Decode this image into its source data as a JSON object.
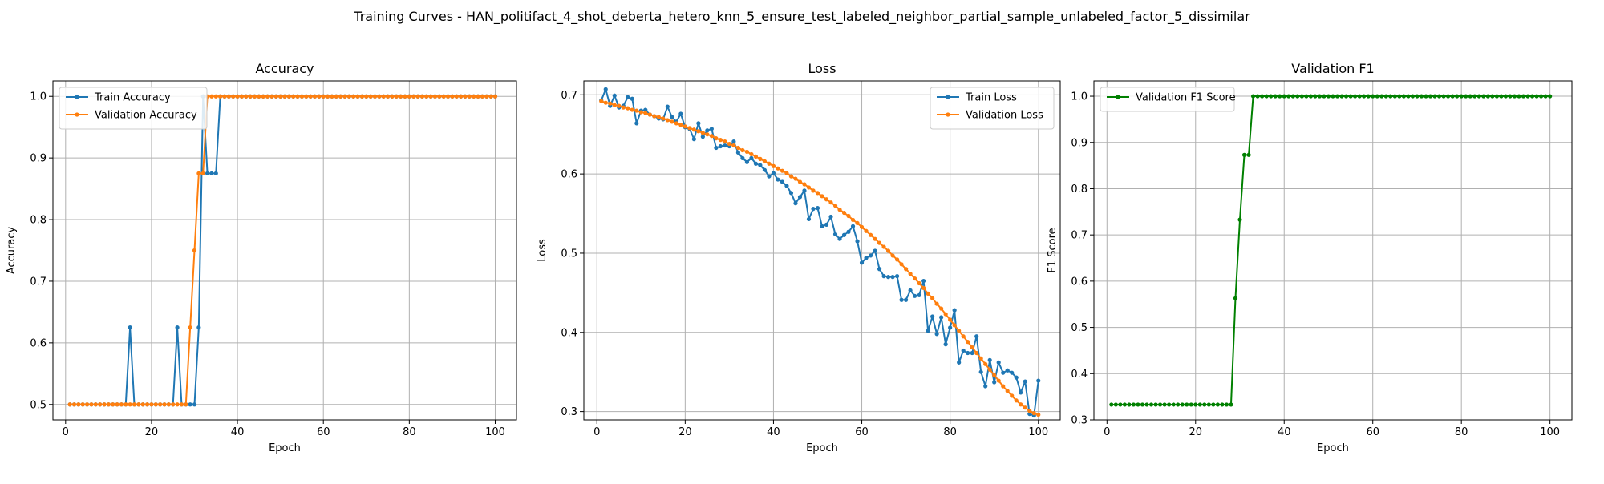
{
  "suptitle": "Training Curves - HAN_politifact_4_shot_deberta_hetero_knn_5_ensure_test_labeled_neighbor_partial_sample_unlabeled_factor_5_dissimilar",
  "colors": {
    "blue": "#1f77b4",
    "orange": "#ff7f0e",
    "green": "#008000",
    "grid": "#b0b0b0"
  },
  "chart_data": [
    {
      "type": "line",
      "title": "Accuracy",
      "xlabel": "Epoch",
      "ylabel": "Accuracy",
      "xlim": [
        -2.95,
        104.95
      ],
      "ylim": [
        0.475,
        1.025
      ],
      "xticks": [
        0,
        20,
        40,
        60,
        80,
        100
      ],
      "yticks": [
        0.5,
        0.6,
        0.7,
        0.8,
        0.9,
        1.0
      ],
      "ytick_labels": [
        "0.5",
        "0.6",
        "0.7",
        "0.8",
        "0.9",
        "1.0"
      ],
      "grid": true,
      "legend": "upper-left",
      "x": [
        1,
        2,
        3,
        4,
        5,
        6,
        7,
        8,
        9,
        10,
        11,
        12,
        13,
        14,
        15,
        16,
        17,
        18,
        19,
        20,
        21,
        22,
        23,
        24,
        25,
        26,
        27,
        28,
        29,
        30,
        31,
        32,
        33,
        34,
        35,
        36,
        37,
        38,
        39,
        40,
        41,
        42,
        43,
        44,
        45,
        46,
        47,
        48,
        49,
        50,
        51,
        52,
        53,
        54,
        55,
        56,
        57,
        58,
        59,
        60,
        61,
        62,
        63,
        64,
        65,
        66,
        67,
        68,
        69,
        70,
        71,
        72,
        73,
        74,
        75,
        76,
        77,
        78,
        79,
        80,
        81,
        82,
        83,
        84,
        85,
        86,
        87,
        88,
        89,
        90,
        91,
        92,
        93,
        94,
        95,
        96,
        97,
        98,
        99,
        100
      ],
      "series": [
        {
          "name": "Train Accuracy",
          "color": "#1f77b4",
          "values": [
            0.5,
            0.5,
            0.5,
            0.5,
            0.5,
            0.5,
            0.5,
            0.5,
            0.5,
            0.5,
            0.5,
            0.5,
            0.5,
            0.5,
            0.625,
            0.5,
            0.5,
            0.5,
            0.5,
            0.5,
            0.5,
            0.5,
            0.5,
            0.5,
            0.5,
            0.625,
            0.5,
            0.5,
            0.5,
            0.5,
            0.625,
            1.0,
            0.875,
            0.875,
            0.875,
            1.0,
            1.0,
            1.0,
            1.0,
            1.0,
            1.0,
            1.0,
            1.0,
            1.0,
            1.0,
            1.0,
            1.0,
            1.0,
            1.0,
            1.0,
            1.0,
            1.0,
            1.0,
            1.0,
            1.0,
            1.0,
            1.0,
            1.0,
            1.0,
            1.0,
            1.0,
            1.0,
            1.0,
            1.0,
            1.0,
            1.0,
            1.0,
            1.0,
            1.0,
            1.0,
            1.0,
            1.0,
            1.0,
            1.0,
            1.0,
            1.0,
            1.0,
            1.0,
            1.0,
            1.0,
            1.0,
            1.0,
            1.0,
            1.0,
            1.0,
            1.0,
            1.0,
            1.0,
            1.0,
            1.0,
            1.0,
            1.0,
            1.0,
            1.0,
            1.0,
            1.0,
            1.0,
            1.0,
            1.0,
            1.0
          ]
        },
        {
          "name": "Validation Accuracy",
          "color": "#ff7f0e",
          "values": [
            0.5,
            0.5,
            0.5,
            0.5,
            0.5,
            0.5,
            0.5,
            0.5,
            0.5,
            0.5,
            0.5,
            0.5,
            0.5,
            0.5,
            0.5,
            0.5,
            0.5,
            0.5,
            0.5,
            0.5,
            0.5,
            0.5,
            0.5,
            0.5,
            0.5,
            0.5,
            0.5,
            0.5,
            0.625,
            0.75,
            0.875,
            0.875,
            1.0,
            1.0,
            1.0,
            1.0,
            1.0,
            1.0,
            1.0,
            1.0,
            1.0,
            1.0,
            1.0,
            1.0,
            1.0,
            1.0,
            1.0,
            1.0,
            1.0,
            1.0,
            1.0,
            1.0,
            1.0,
            1.0,
            1.0,
            1.0,
            1.0,
            1.0,
            1.0,
            1.0,
            1.0,
            1.0,
            1.0,
            1.0,
            1.0,
            1.0,
            1.0,
            1.0,
            1.0,
            1.0,
            1.0,
            1.0,
            1.0,
            1.0,
            1.0,
            1.0,
            1.0,
            1.0,
            1.0,
            1.0,
            1.0,
            1.0,
            1.0,
            1.0,
            1.0,
            1.0,
            1.0,
            1.0,
            1.0,
            1.0,
            1.0,
            1.0,
            1.0,
            1.0,
            1.0,
            1.0,
            1.0,
            1.0,
            1.0,
            1.0
          ]
        }
      ]
    },
    {
      "type": "line",
      "title": "Loss",
      "xlabel": "Epoch",
      "ylabel": "Loss",
      "xlim": [
        -2.95,
        104.95
      ],
      "ylim": [
        0.2895,
        0.7175
      ],
      "xticks": [
        0,
        20,
        40,
        60,
        80,
        100
      ],
      "yticks": [
        0.3,
        0.4,
        0.5,
        0.6,
        0.7
      ],
      "ytick_labels": [
        "0.3",
        "0.4",
        "0.5",
        "0.6",
        "0.7"
      ],
      "grid": true,
      "legend": "upper-right",
      "x": [
        1,
        2,
        3,
        4,
        5,
        6,
        7,
        8,
        9,
        10,
        11,
        12,
        13,
        14,
        15,
        16,
        17,
        18,
        19,
        20,
        21,
        22,
        23,
        24,
        25,
        26,
        27,
        28,
        29,
        30,
        31,
        32,
        33,
        34,
        35,
        36,
        37,
        38,
        39,
        40,
        41,
        42,
        43,
        44,
        45,
        46,
        47,
        48,
        49,
        50,
        51,
        52,
        53,
        54,
        55,
        56,
        57,
        58,
        59,
        60,
        61,
        62,
        63,
        64,
        65,
        66,
        67,
        68,
        69,
        70,
        71,
        72,
        73,
        74,
        75,
        76,
        77,
        78,
        79,
        80,
        81,
        82,
        83,
        84,
        85,
        86,
        87,
        88,
        89,
        90,
        91,
        92,
        93,
        94,
        95,
        96,
        97,
        98,
        99,
        100
      ],
      "series": [
        {
          "name": "Train Loss",
          "color": "#1f77b4",
          "values": [
            0.693,
            0.707,
            0.686,
            0.699,
            0.684,
            0.686,
            0.697,
            0.695,
            0.664,
            0.68,
            0.681,
            0.675,
            0.673,
            0.67,
            0.669,
            0.685,
            0.672,
            0.666,
            0.676,
            0.659,
            0.657,
            0.644,
            0.664,
            0.647,
            0.655,
            0.657,
            0.633,
            0.635,
            0.636,
            0.635,
            0.641,
            0.627,
            0.62,
            0.615,
            0.62,
            0.613,
            0.611,
            0.605,
            0.597,
            0.601,
            0.593,
            0.59,
            0.585,
            0.576,
            0.563,
            0.571,
            0.579,
            0.543,
            0.556,
            0.557,
            0.534,
            0.536,
            0.546,
            0.524,
            0.518,
            0.523,
            0.527,
            0.534,
            0.515,
            0.488,
            0.494,
            0.497,
            0.503,
            0.48,
            0.471,
            0.47,
            0.47,
            0.471,
            0.441,
            0.441,
            0.453,
            0.446,
            0.447,
            0.465,
            0.402,
            0.42,
            0.398,
            0.419,
            0.385,
            0.406,
            0.428,
            0.362,
            0.377,
            0.374,
            0.374,
            0.395,
            0.35,
            0.332,
            0.365,
            0.337,
            0.362,
            0.349,
            0.352,
            0.349,
            0.343,
            0.324,
            0.338,
            0.297,
            0.295,
            0.339
          ]
        },
        {
          "name": "Validation Loss",
          "color": "#ff7f0e",
          "values": [
            0.692,
            0.69,
            0.689,
            0.687,
            0.686,
            0.684,
            0.683,
            0.681,
            0.68,
            0.678,
            0.677,
            0.675,
            0.673,
            0.672,
            0.67,
            0.668,
            0.666,
            0.664,
            0.662,
            0.66,
            0.658,
            0.656,
            0.654,
            0.652,
            0.65,
            0.648,
            0.645,
            0.643,
            0.641,
            0.638,
            0.636,
            0.633,
            0.63,
            0.628,
            0.625,
            0.622,
            0.619,
            0.616,
            0.613,
            0.61,
            0.607,
            0.604,
            0.601,
            0.597,
            0.594,
            0.59,
            0.587,
            0.583,
            0.579,
            0.576,
            0.572,
            0.568,
            0.564,
            0.56,
            0.555,
            0.551,
            0.547,
            0.542,
            0.538,
            0.533,
            0.528,
            0.523,
            0.518,
            0.513,
            0.508,
            0.503,
            0.497,
            0.492,
            0.486,
            0.48,
            0.474,
            0.468,
            0.462,
            0.456,
            0.449,
            0.443,
            0.436,
            0.43,
            0.423,
            0.416,
            0.409,
            0.402,
            0.395,
            0.388,
            0.381,
            0.374,
            0.367,
            0.36,
            0.353,
            0.346,
            0.339,
            0.332,
            0.326,
            0.32,
            0.314,
            0.309,
            0.305,
            0.301,
            0.298,
            0.296
          ]
        }
      ]
    },
    {
      "type": "line",
      "title": "Validation F1",
      "xlabel": "Epoch",
      "ylabel": "F1 Score",
      "xlim": [
        -2.95,
        104.95
      ],
      "ylim": [
        0.3,
        1.033
      ],
      "xticks": [
        0,
        20,
        40,
        60,
        80,
        100
      ],
      "yticks": [
        0.3,
        0.4,
        0.5,
        0.6,
        0.7,
        0.8,
        0.9,
        1.0
      ],
      "ytick_labels": [
        "0.3",
        "0.4",
        "0.5",
        "0.6",
        "0.7",
        "0.8",
        "0.9",
        "1.0"
      ],
      "grid": true,
      "legend": "upper-left",
      "x": [
        1,
        2,
        3,
        4,
        5,
        6,
        7,
        8,
        9,
        10,
        11,
        12,
        13,
        14,
        15,
        16,
        17,
        18,
        19,
        20,
        21,
        22,
        23,
        24,
        25,
        26,
        27,
        28,
        29,
        30,
        31,
        32,
        33,
        34,
        35,
        36,
        37,
        38,
        39,
        40,
        41,
        42,
        43,
        44,
        45,
        46,
        47,
        48,
        49,
        50,
        51,
        52,
        53,
        54,
        55,
        56,
        57,
        58,
        59,
        60,
        61,
        62,
        63,
        64,
        65,
        66,
        67,
        68,
        69,
        70,
        71,
        72,
        73,
        74,
        75,
        76,
        77,
        78,
        79,
        80,
        81,
        82,
        83,
        84,
        85,
        86,
        87,
        88,
        89,
        90,
        91,
        92,
        93,
        94,
        95,
        96,
        97,
        98,
        99,
        100
      ],
      "series": [
        {
          "name": "Validation F1 Score",
          "color": "#008000",
          "values": [
            0.333,
            0.333,
            0.333,
            0.333,
            0.333,
            0.333,
            0.333,
            0.333,
            0.333,
            0.333,
            0.333,
            0.333,
            0.333,
            0.333,
            0.333,
            0.333,
            0.333,
            0.333,
            0.333,
            0.333,
            0.333,
            0.333,
            0.333,
            0.333,
            0.333,
            0.333,
            0.333,
            0.333,
            0.563,
            0.733,
            0.873,
            0.873,
            1.0,
            1.0,
            1.0,
            1.0,
            1.0,
            1.0,
            1.0,
            1.0,
            1.0,
            1.0,
            1.0,
            1.0,
            1.0,
            1.0,
            1.0,
            1.0,
            1.0,
            1.0,
            1.0,
            1.0,
            1.0,
            1.0,
            1.0,
            1.0,
            1.0,
            1.0,
            1.0,
            1.0,
            1.0,
            1.0,
            1.0,
            1.0,
            1.0,
            1.0,
            1.0,
            1.0,
            1.0,
            1.0,
            1.0,
            1.0,
            1.0,
            1.0,
            1.0,
            1.0,
            1.0,
            1.0,
            1.0,
            1.0,
            1.0,
            1.0,
            1.0,
            1.0,
            1.0,
            1.0,
            1.0,
            1.0,
            1.0,
            1.0,
            1.0,
            1.0,
            1.0,
            1.0,
            1.0,
            1.0,
            1.0,
            1.0,
            1.0,
            1.0
          ]
        }
      ]
    }
  ]
}
